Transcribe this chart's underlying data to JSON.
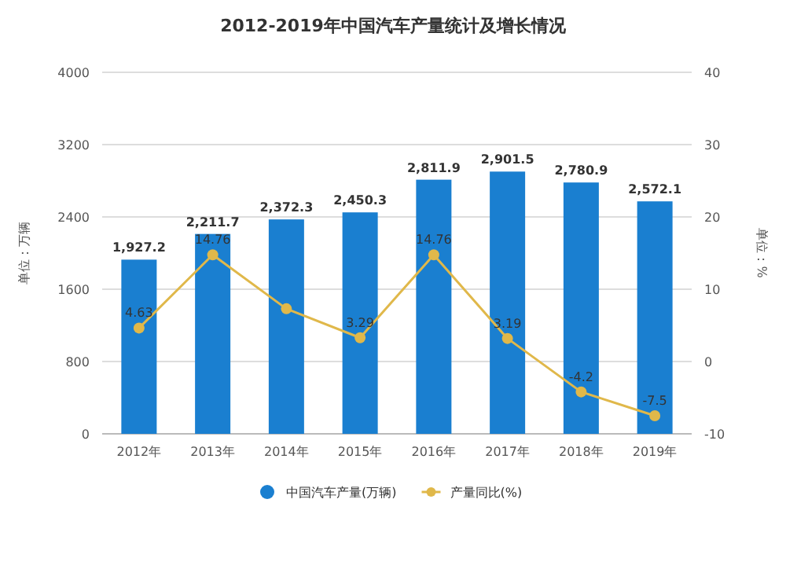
{
  "chart_data": {
    "type": "bar",
    "title": "2012-2019年中国汽车产量统计及增长情况",
    "ylabel": "单位：万辆",
    "y2label": "单位：%",
    "categories": [
      "2012年",
      "2013年",
      "2014年",
      "2015年",
      "2016年",
      "2017年",
      "2018年",
      "2019年"
    ],
    "series": [
      {
        "name": "中国汽车产量(万辆)",
        "color": "#1a7fd0",
        "values": [
          1927.2,
          2211.7,
          2372.3,
          2450.3,
          2811.9,
          2901.5,
          2780.9,
          2572.1
        ],
        "value_labels": [
          "1,927.2",
          "2,211.7",
          "2,372.3",
          "2,450.3",
          "2,811.9",
          "2,901.5",
          "2,780.9",
          "2,572.1"
        ]
      },
      {
        "name": "产量同比(%)",
        "type": "line",
        "axis": "y2",
        "color": "#e0b84a",
        "marker": "circle",
        "values": [
          4.63,
          14.76,
          7.3,
          3.29,
          14.76,
          3.19,
          -4.2,
          -7.5
        ],
        "value_labels": [
          "4.63",
          "14.76",
          null,
          "3.29",
          "14.76",
          "3.19",
          "-4.2",
          "-7.5"
        ]
      }
    ],
    "ylim": [
      0,
      4000
    ],
    "yticks": [
      0,
      800,
      1600,
      2400,
      3200,
      4000
    ],
    "y2lim": [
      -10,
      40
    ],
    "y2ticks": [
      -10,
      0,
      10,
      20,
      30,
      40
    ],
    "grid": "y",
    "legend": "bottom"
  }
}
